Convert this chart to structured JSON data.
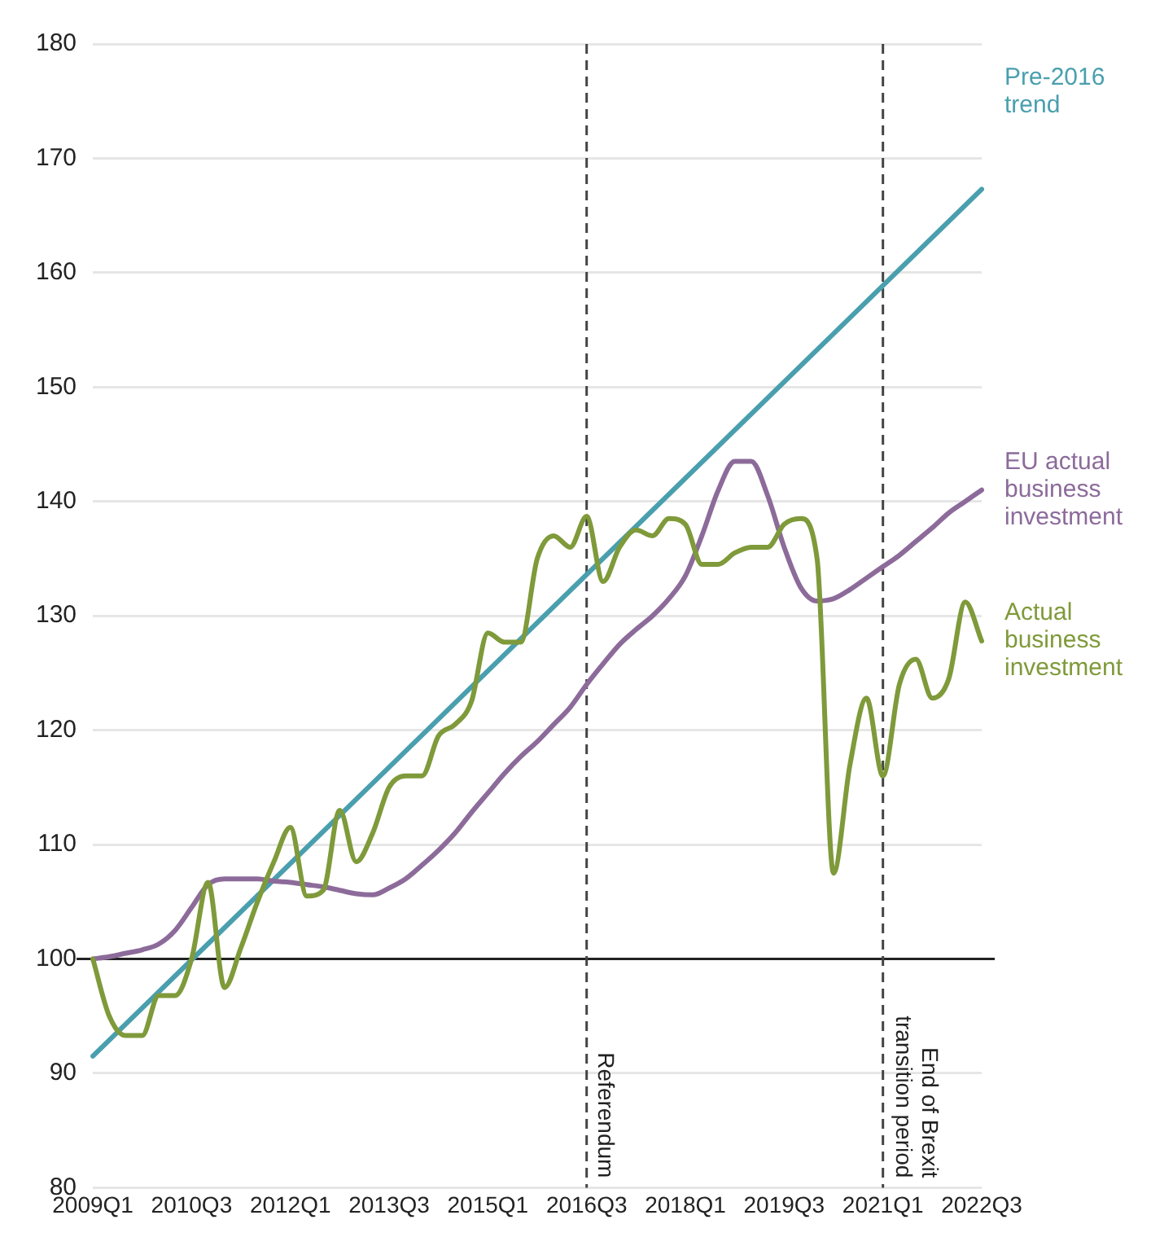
{
  "chart_data": {
    "type": "line",
    "categories": [
      "2009Q1",
      null,
      null,
      null,
      null,
      null,
      "2010Q3",
      null,
      null,
      null,
      null,
      null,
      "2012Q1",
      null,
      null,
      null,
      null,
      null,
      "2013Q3",
      null,
      null,
      null,
      null,
      null,
      "2015Q1",
      null,
      null,
      null,
      null,
      null,
      "2016Q3",
      null,
      null,
      null,
      null,
      null,
      "2018Q1",
      null,
      null,
      null,
      null,
      null,
      "2019Q3",
      null,
      null,
      null,
      null,
      null,
      "2021Q1",
      null,
      null,
      null,
      null,
      null,
      "2022Q3"
    ],
    "series": [
      {
        "name": "Actual business investment",
        "color": "#7f9a3a",
        "values": [
          100,
          95,
          93.3,
          93.3,
          96.8,
          96.8,
          100,
          106.7,
          97.5,
          101,
          105,
          108.5,
          111.5,
          105.5,
          106,
          113,
          108.5,
          111,
          115,
          116,
          116,
          119.5,
          120.5,
          122.5,
          128.5,
          127.7,
          127.7,
          135,
          137,
          136,
          138.7,
          133,
          136,
          137.5,
          137,
          138.5,
          138,
          134.5,
          134.5,
          135.5,
          136,
          136,
          138,
          138.5,
          135,
          107.5,
          117,
          122.8,
          116,
          124,
          126.2,
          122.8,
          124.5,
          131.2,
          127.8
        ]
      },
      {
        "name": "EU actual business investment",
        "color": "#8c6b9a",
        "values": [
          100,
          100.2,
          100.5,
          100.8,
          101.3,
          102.5,
          104.5,
          106.5,
          107,
          107,
          107,
          106.8,
          106.7,
          106.5,
          106.3,
          106,
          105.7,
          105.6,
          106.2,
          107,
          108.2,
          109.5,
          111,
          112.8,
          114.5,
          116.2,
          117.7,
          119,
          120.5,
          122,
          124,
          125.8,
          127.5,
          128.8,
          130,
          131.5,
          133.5,
          137,
          141,
          143.5,
          143.5,
          140.5,
          136,
          132.5,
          131.3,
          131.5,
          132.3,
          133.3,
          134.3,
          135.3,
          136.5,
          137.7,
          139,
          140,
          141
        ]
      },
      {
        "name": "Pre-2016 trend",
        "type": "line",
        "color": "#4a9fae",
        "values": [
          91.5,
          null,
          null,
          null,
          null,
          null,
          null,
          null,
          null,
          null,
          null,
          null,
          null,
          null,
          null,
          null,
          null,
          null,
          null,
          null,
          null,
          null,
          null,
          null,
          null,
          null,
          null,
          null,
          null,
          null,
          null,
          null,
          null,
          null,
          null,
          null,
          null,
          null,
          null,
          null,
          null,
          null,
          null,
          null,
          null,
          null,
          null,
          null,
          null,
          null,
          null,
          null,
          null,
          null,
          167.3
        ]
      }
    ],
    "ylim": [
      80,
      180
    ],
    "yticks": [
      80,
      90,
      100,
      110,
      120,
      130,
      140,
      150,
      160,
      170,
      180
    ],
    "ref_lines": [
      {
        "axis": "y",
        "value": 100,
        "label": null,
        "color": "#222222",
        "line_style": "solid"
      },
      {
        "axis": "x",
        "value": "2016Q3",
        "label": "Referendum",
        "color": "#444444",
        "line_style": "dashed"
      },
      {
        "axis": "x",
        "value": "2021Q1",
        "label": "End of Brexit transition period",
        "color": "#444444",
        "line_style": "dashed"
      }
    ],
    "grid": "y",
    "legend": false,
    "marker": "none",
    "line_style": "solid"
  }
}
